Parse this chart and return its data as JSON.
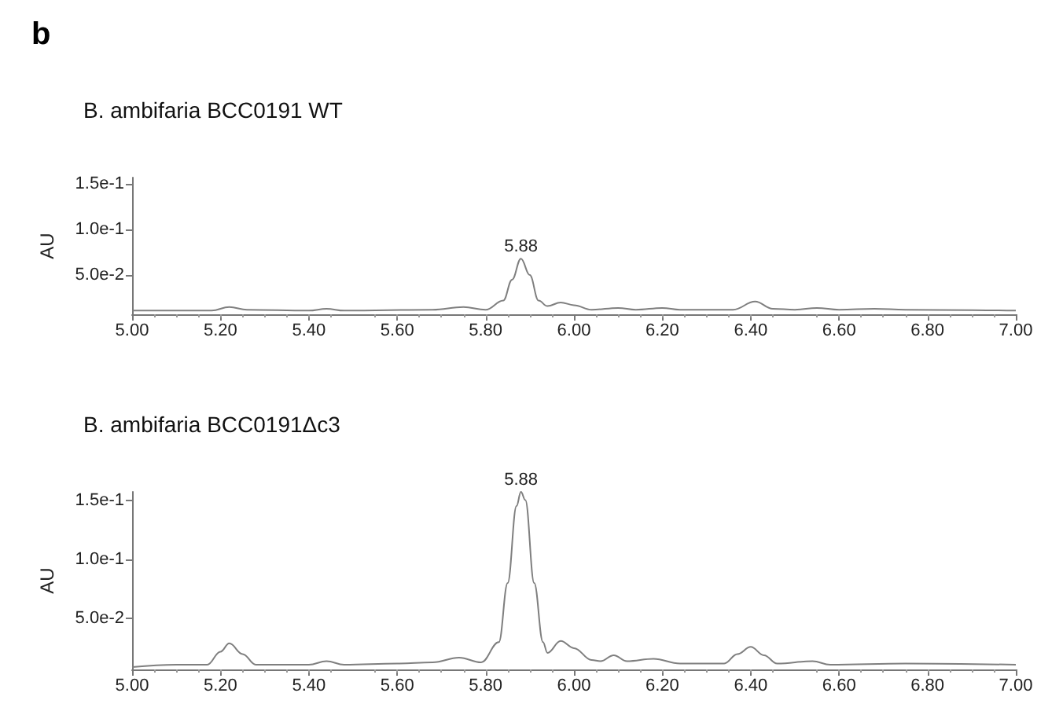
{
  "chart_data": [
    {
      "type": "line",
      "title": "B. ambifaria BCC0191 WT",
      "ylabel": "AU",
      "annotations": [
        "b",
        {
          "text": "5.88",
          "x": 5.88,
          "y": 0.068
        }
      ],
      "series": [
        {
          "color": "#7f7f7f",
          "x": [
            5.0,
            5.18,
            5.22,
            5.26,
            5.4,
            5.44,
            5.48,
            5.68,
            5.75,
            5.8,
            5.84,
            5.86,
            5.88,
            5.9,
            5.92,
            5.94,
            5.97,
            6.0,
            6.04,
            6.1,
            6.14,
            6.2,
            6.24,
            6.36,
            6.41,
            6.45,
            6.5,
            6.55,
            6.6,
            6.68,
            6.75,
            7.0
          ],
          "values": [
            0.011,
            0.011,
            0.015,
            0.012,
            0.011,
            0.013,
            0.011,
            0.012,
            0.015,
            0.012,
            0.022,
            0.045,
            0.068,
            0.05,
            0.022,
            0.016,
            0.02,
            0.017,
            0.012,
            0.014,
            0.012,
            0.014,
            0.012,
            0.012,
            0.021,
            0.013,
            0.012,
            0.014,
            0.012,
            0.013,
            0.012,
            0.011
          ]
        }
      ],
      "xlim": [
        5,
        7
      ],
      "xticks": [
        {
          "value": 5,
          "label": "5.00"
        },
        {
          "value": 5.2,
          "label": "5.20"
        },
        {
          "value": 5.4,
          "label": "5.40"
        },
        {
          "value": 5.6,
          "label": "5.60"
        },
        {
          "value": 5.8,
          "label": "5.80"
        },
        {
          "value": 6,
          "label": "6.00"
        },
        {
          "value": 6.2,
          "label": "6.20"
        },
        {
          "value": 6.4,
          "label": "6.40"
        },
        {
          "value": 6.6,
          "label": "6.60"
        },
        {
          "value": 6.8,
          "label": "6.80"
        },
        {
          "value": 7,
          "label": "7.00"
        }
      ],
      "ylim": [
        0.007,
        0.157
      ],
      "yticks": [
        {
          "value": 0.05,
          "label": "5.0e-2"
        },
        {
          "value": 0.1,
          "label": "1.0e-1"
        },
        {
          "value": 0.15,
          "label": "1.5e-1"
        }
      ],
      "grid": false,
      "marker": "none",
      "line_style": "solid"
    },
    {
      "type": "line",
      "title": "B. ambifaria BCC0191Δc3",
      "ylabel": "AU",
      "annotations": [
        {
          "text": "5.88",
          "x": 5.88,
          "y": 0.157
        }
      ],
      "series": [
        {
          "color": "#7f7f7f",
          "x": [
            5.0,
            5.1,
            5.17,
            5.2,
            5.22,
            5.25,
            5.28,
            5.4,
            5.44,
            5.48,
            5.6,
            5.68,
            5.74,
            5.79,
            5.83,
            5.85,
            5.87,
            5.88,
            5.89,
            5.91,
            5.93,
            5.94,
            5.97,
            6.0,
            6.04,
            6.06,
            6.09,
            6.12,
            6.18,
            6.24,
            6.34,
            6.37,
            6.4,
            6.43,
            6.46,
            6.54,
            6.58,
            6.75,
            7.0
          ],
          "values": [
            0.009,
            0.011,
            0.011,
            0.022,
            0.029,
            0.02,
            0.011,
            0.011,
            0.014,
            0.011,
            0.012,
            0.013,
            0.017,
            0.013,
            0.03,
            0.08,
            0.145,
            0.157,
            0.15,
            0.08,
            0.03,
            0.021,
            0.031,
            0.025,
            0.015,
            0.014,
            0.019,
            0.014,
            0.016,
            0.012,
            0.012,
            0.02,
            0.026,
            0.019,
            0.012,
            0.014,
            0.011,
            0.012,
            0.011
          ]
        }
      ],
      "xlim": [
        5,
        7
      ],
      "xticks": [
        {
          "value": 5,
          "label": "5.00"
        },
        {
          "value": 5.2,
          "label": "5.20"
        },
        {
          "value": 5.4,
          "label": "5.40"
        },
        {
          "value": 5.6,
          "label": "5.60"
        },
        {
          "value": 5.8,
          "label": "5.80"
        },
        {
          "value": 6,
          "label": "6.00"
        },
        {
          "value": 6.2,
          "label": "6.20"
        },
        {
          "value": 6.4,
          "label": "6.40"
        },
        {
          "value": 6.6,
          "label": "6.60"
        },
        {
          "value": 6.8,
          "label": "6.80"
        },
        {
          "value": 7,
          "label": "7.00"
        }
      ],
      "ylim": [
        0.007,
        0.157
      ],
      "yticks": [
        {
          "value": 0.05,
          "label": "5.0e-2"
        },
        {
          "value": 0.1,
          "label": "1.0e-1"
        },
        {
          "value": 0.15,
          "label": "1.5e-1"
        }
      ],
      "grid": false,
      "marker": "none",
      "line_style": "solid"
    }
  ]
}
